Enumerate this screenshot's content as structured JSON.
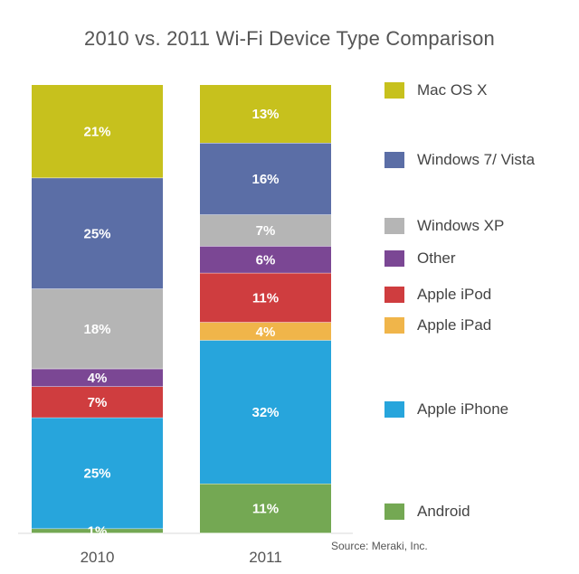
{
  "chart_data": {
    "type": "bar",
    "stacked": true,
    "title": "2010 vs. 2011 Wi-Fi Device Type Comparison",
    "categories": [
      "2010",
      "2011"
    ],
    "series": [
      {
        "name": "Mac OS X",
        "color": "#c7c11d",
        "values": [
          21,
          13
        ],
        "labels": [
          "21%",
          "13%"
        ]
      },
      {
        "name": "Windows 7/ Vista",
        "color": "#5b6ea6",
        "values": [
          25,
          16
        ],
        "labels": [
          "25%",
          "16%"
        ]
      },
      {
        "name": "Windows XP",
        "color": "#b5b5b5",
        "values": [
          18,
          7
        ],
        "labels": [
          "18%",
          "7%"
        ]
      },
      {
        "name": "Other",
        "color": "#7b4794",
        "values": [
          4,
          6
        ],
        "labels": [
          "4%",
          "6%"
        ]
      },
      {
        "name": "Apple iPod",
        "color": "#cf3d3f",
        "values": [
          7,
          11
        ],
        "labels": [
          "7%",
          "11%"
        ]
      },
      {
        "name": "Apple iPad",
        "color": "#f0b54a",
        "values": [
          0,
          4
        ],
        "labels": [
          "",
          "4%"
        ]
      },
      {
        "name": "Apple iPhone",
        "color": "#27a5dc",
        "values": [
          25,
          32
        ],
        "labels": [
          "25%",
          "32%"
        ]
      },
      {
        "name": "Android",
        "color": "#74a853",
        "values": [
          1,
          11
        ],
        "labels": [
          "1%",
          "11%"
        ]
      }
    ],
    "ylim": [
      0,
      100
    ],
    "xlabel": "",
    "ylabel": "",
    "legend": "right",
    "source": "Source: Meraki, Inc."
  }
}
